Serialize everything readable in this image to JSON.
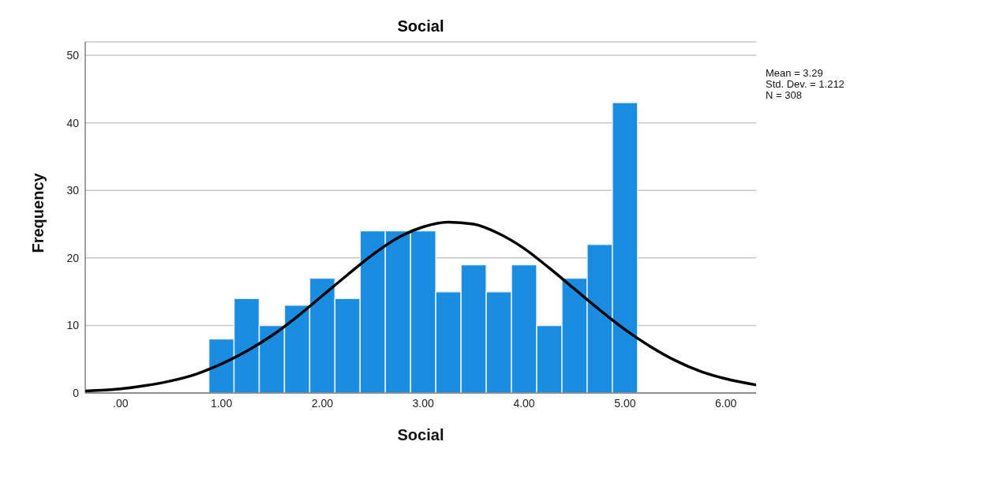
{
  "chart_data": {
    "type": "histogram",
    "title": "Social",
    "xlabel": "Social",
    "ylabel": "Frequency",
    "bins": [
      0.875,
      1.125,
      1.375,
      1.625,
      1.875,
      2.125,
      2.375,
      2.625,
      2.875,
      3.125,
      3.375,
      3.625,
      3.875,
      4.125,
      4.375,
      4.625,
      4.875,
      5.125
    ],
    "values": [
      8,
      14,
      10,
      13,
      17,
      14,
      24,
      24,
      24,
      15,
      19,
      15,
      19,
      10,
      17,
      22,
      43
    ],
    "color": "#1a8de0",
    "series": [
      {
        "type": "line",
        "color": "#000000",
        "x": [
          -0.35,
          0,
          0.25,
          0.5,
          0.75,
          1,
          1.25,
          1.5,
          1.75,
          2,
          2.25,
          2.5,
          2.75,
          3,
          3.25,
          3.5,
          3.75,
          4,
          4.25,
          4.5,
          4.75,
          5,
          5.25,
          5.5,
          5.75,
          6,
          6.3
        ],
        "values": [
          0.3,
          0.6,
          1.1,
          1.8,
          2.8,
          4.3,
          6.2,
          8.5,
          11.3,
          14.4,
          17.5,
          20.5,
          23,
          24.6,
          25.3,
          25,
          23.6,
          21.4,
          18.5,
          15.4,
          12.3,
          9.4,
          6.9,
          4.8,
          3.2,
          2.1,
          1.2
        ]
      }
    ],
    "xlim": [
      -0.35,
      6.3
    ],
    "xticks": [
      {
        "value": 0,
        "label": ".00"
      },
      {
        "value": 1,
        "label": "1.00"
      },
      {
        "value": 2,
        "label": "2.00"
      },
      {
        "value": 3,
        "label": "3.00"
      },
      {
        "value": 4,
        "label": "4.00"
      },
      {
        "value": 5,
        "label": "5.00"
      },
      {
        "value": 6,
        "label": "6.00"
      }
    ],
    "ylim": [
      0,
      52
    ],
    "yticks": [
      0,
      10,
      20,
      30,
      40,
      50
    ],
    "grid": "y",
    "marker": "none",
    "annotations": [
      "Mean = 3.29",
      "Std. Dev. = 1.212",
      "N = 308"
    ]
  }
}
